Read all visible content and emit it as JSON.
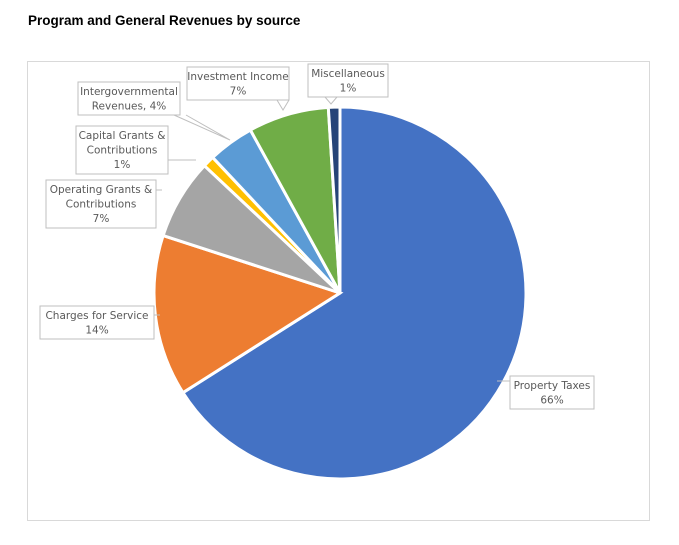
{
  "title": "Program and General Revenues by source",
  "chart_data": {
    "type": "pie",
    "title": "Program and General Revenues by source",
    "categories": [
      "Property Taxes",
      "Charges for Service",
      "Operating Grants & Contributions",
      "Capital Grants & Contributions",
      "Intergovernmental Revenues",
      "Investment Income",
      "Miscellaneous"
    ],
    "values": [
      66,
      14,
      7,
      1,
      4,
      7,
      1
    ],
    "colors": [
      "#4472c4",
      "#ed7d31",
      "#a5a5a5",
      "#ffc000",
      "#5b9bd5",
      "#70ad47",
      "#264478"
    ],
    "labels": [
      {
        "lines": [
          "Property Taxes",
          "66%"
        ]
      },
      {
        "lines": [
          "Charges for Service",
          "14%"
        ]
      },
      {
        "lines": [
          "Operating Grants &",
          "Contributions",
          "7%"
        ]
      },
      {
        "lines": [
          "Capital Grants &",
          "Contributions",
          "1%"
        ]
      },
      {
        "lines": [
          "Intergovernmental",
          "Revenues, 4%"
        ]
      },
      {
        "lines": [
          "Investment Income",
          "7%"
        ]
      },
      {
        "lines": [
          "Miscellaneous",
          "1%"
        ]
      }
    ],
    "legend": "none"
  }
}
